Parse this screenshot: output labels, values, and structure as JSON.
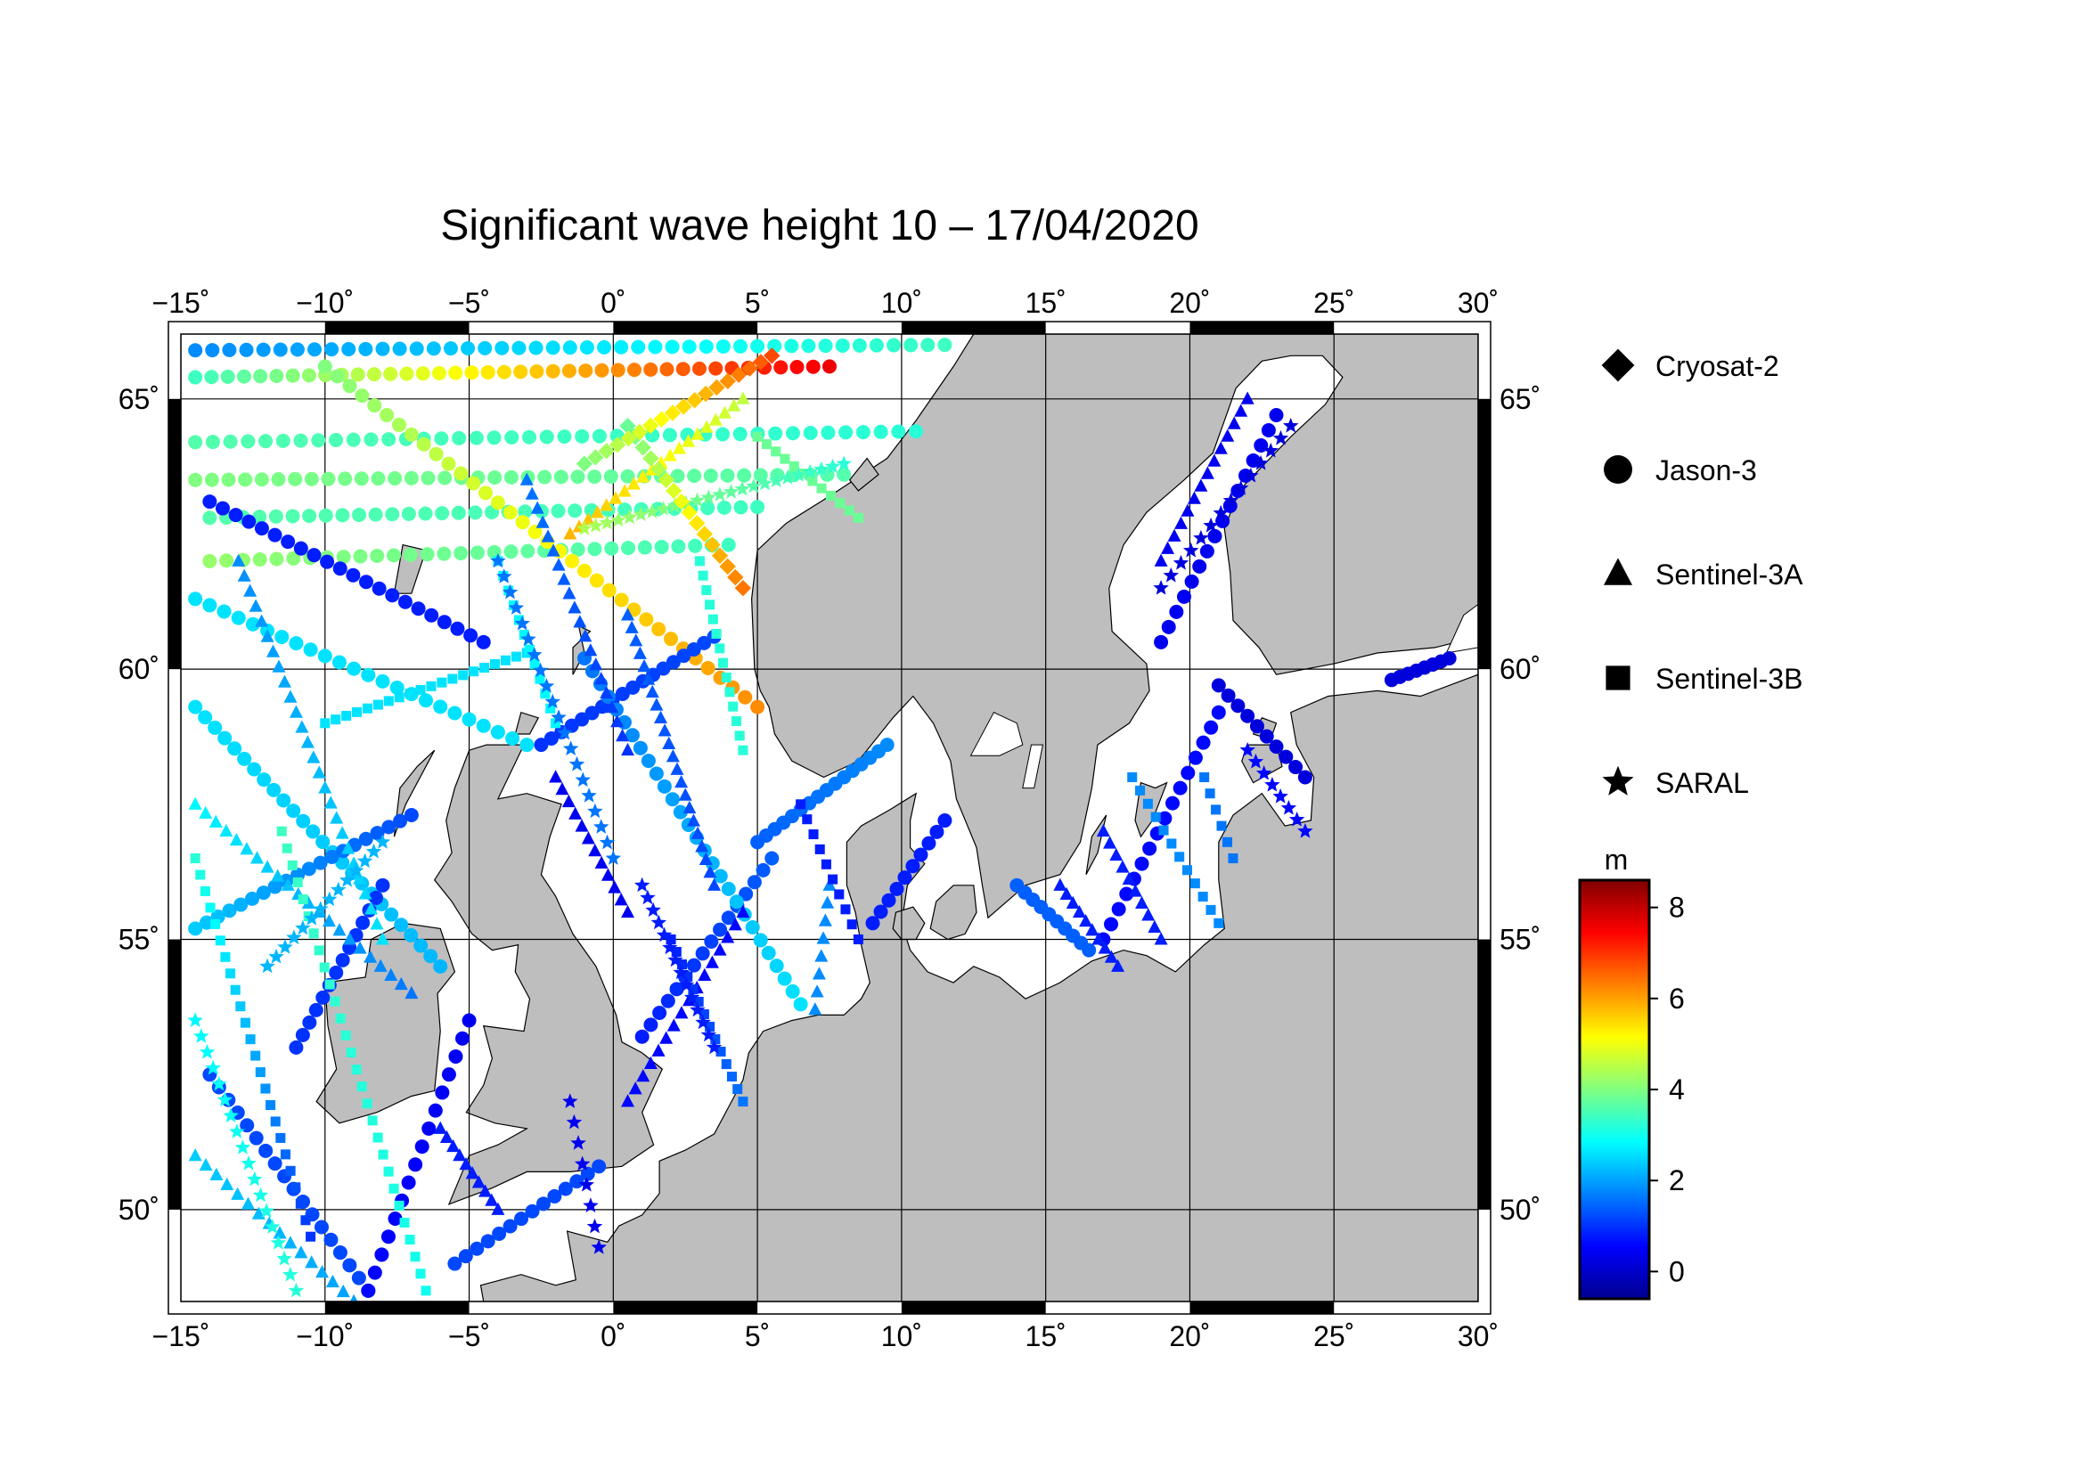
{
  "title": "Significant wave height 10 – 17/04/2020",
  "map": {
    "lon_range": [
      -15,
      30
    ],
    "lat_range": [
      48.3,
      66.2
    ],
    "lon_ticks": [
      -15,
      -10,
      -5,
      0,
      5,
      10,
      15,
      20,
      25,
      30
    ],
    "lon_tick_labels": [
      "−15˚",
      "−10˚",
      "−5˚",
      "0˚",
      "5˚",
      "10˚",
      "15˚",
      "20˚",
      "25˚",
      "30˚"
    ],
    "lat_ticks": [
      50,
      55,
      60,
      65
    ],
    "lat_tick_labels": [
      "50˚",
      "55˚",
      "60˚",
      "65˚"
    ],
    "grid": true,
    "land_color": "#bebebe",
    "sea_color": "#ffffff"
  },
  "legend": {
    "placement": "right",
    "items": [
      {
        "label": "Cryosat-2",
        "symbol": "diamond"
      },
      {
        "label": "Jason-3",
        "symbol": "circle"
      },
      {
        "label": "Sentinel-3A",
        "symbol": "triangle"
      },
      {
        "label": "Sentinel-3B",
        "symbol": "square"
      },
      {
        "label": "SARAL",
        "symbol": "star"
      }
    ]
  },
  "colorbar": {
    "unit": "m",
    "range": [
      -0.6,
      8.6
    ],
    "ticks": [
      0,
      2,
      4,
      6,
      8
    ],
    "tick_labels": [
      "0",
      "2",
      "4",
      "6",
      "8"
    ],
    "colors": [
      "#00008f",
      "#0000ff",
      "#0080ff",
      "#00ffff",
      "#80ff80",
      "#ffff00",
      "#ff8000",
      "#ff0000",
      "#800000"
    ]
  },
  "chart_data": {
    "type": "scatter",
    "x_name": "longitude",
    "y_name": "latitude",
    "value_name": "significant wave height (m)",
    "tracks": [
      {
        "satellite": "Jason-3",
        "symbol": "circle",
        "start": [
          -14.5,
          65.9
        ],
        "end": [
          11.5,
          66.0
        ],
        "h_start": 1.8,
        "h_end": 3.4,
        "n": 45
      },
      {
        "satellite": "Jason-3",
        "symbol": "circle",
        "start": [
          -14.5,
          65.4
        ],
        "end": [
          7.5,
          65.6
        ],
        "h_start": 3.4,
        "h_end": 7.6,
        "n": 40
      },
      {
        "satellite": "Jason-3",
        "symbol": "circle",
        "start": [
          -14.5,
          64.2
        ],
        "end": [
          10.5,
          64.4
        ],
        "h_start": 3.6,
        "h_end": 3.2,
        "n": 42
      },
      {
        "satellite": "Jason-3",
        "symbol": "circle",
        "start": [
          -14.5,
          63.5
        ],
        "end": [
          8.0,
          63.6
        ],
        "h_start": 4.0,
        "h_end": 3.6,
        "n": 40
      },
      {
        "satellite": "Jason-3",
        "symbol": "circle",
        "start": [
          -14.0,
          62.8
        ],
        "end": [
          5.0,
          63.0
        ],
        "h_start": 3.6,
        "h_end": 3.4,
        "n": 34
      },
      {
        "satellite": "Jason-3",
        "symbol": "circle",
        "start": [
          -14.0,
          62.0
        ],
        "end": [
          4.0,
          62.3
        ],
        "h_start": 4.2,
        "h_end": 3.4,
        "n": 32
      },
      {
        "satellite": "Jason-3",
        "symbol": "circle",
        "start": [
          -10.0,
          65.6
        ],
        "end": [
          5.0,
          59.3
        ],
        "h_start": 4.0,
        "h_end": 6.2,
        "n": 36
      },
      {
        "satellite": "Jason-3",
        "symbol": "circle",
        "start": [
          -14.5,
          61.3
        ],
        "end": [
          -3.0,
          58.6
        ],
        "h_start": 2.6,
        "h_end": 2.6,
        "n": 24
      },
      {
        "satellite": "Jason-3",
        "symbol": "circle",
        "start": [
          -14.0,
          63.1
        ],
        "end": [
          -4.5,
          60.5
        ],
        "h_start": 0.8,
        "h_end": 0.8,
        "n": 22
      },
      {
        "satellite": "Jason-3",
        "symbol": "circle",
        "start": [
          -14.5,
          59.3
        ],
        "end": [
          -6.0,
          54.5
        ],
        "h_start": 2.6,
        "h_end": 2.2,
        "n": 26
      },
      {
        "satellite": "Jason-3",
        "symbol": "circle",
        "start": [
          -14.5,
          55.2
        ],
        "end": [
          -7.0,
          57.3
        ],
        "h_start": 2.4,
        "h_end": 1.2,
        "n": 20
      },
      {
        "satellite": "Jason-3",
        "symbol": "circle",
        "start": [
          -11.0,
          53.0
        ],
        "end": [
          -8.0,
          56.0
        ],
        "h_start": 1.0,
        "h_end": 1.0,
        "n": 14
      },
      {
        "satellite": "Jason-3",
        "symbol": "circle",
        "start": [
          -14.0,
          52.5
        ],
        "end": [
          -8.5,
          48.5
        ],
        "h_start": 1.2,
        "h_end": 1.2,
        "n": 18
      },
      {
        "satellite": "Jason-3",
        "symbol": "circle",
        "start": [
          -8.5,
          48.5
        ],
        "end": [
          -5.0,
          53.5
        ],
        "h_start": 0.6,
        "h_end": 0.4,
        "n": 16
      },
      {
        "satellite": "Jason-3",
        "symbol": "circle",
        "start": [
          -5.5,
          49.0
        ],
        "end": [
          -0.5,
          50.8
        ],
        "h_start": 1.2,
        "h_end": 1.2,
        "n": 14
      },
      {
        "satellite": "Jason-3",
        "symbol": "circle",
        "start": [
          1.0,
          53.2
        ],
        "end": [
          5.5,
          56.5
        ],
        "h_start": 0.8,
        "h_end": 1.4,
        "n": 16
      },
      {
        "satellite": "Jason-3",
        "symbol": "circle",
        "start": [
          -2.5,
          58.6
        ],
        "end": [
          3.5,
          60.6
        ],
        "h_start": 1.0,
        "h_end": 1.2,
        "n": 18
      },
      {
        "satellite": "Jason-3",
        "symbol": "circle",
        "start": [
          -1.0,
          60.2
        ],
        "end": [
          6.5,
          53.8
        ],
        "h_start": 1.6,
        "h_end": 2.6,
        "n": 28
      },
      {
        "satellite": "Jason-3",
        "symbol": "circle",
        "start": [
          5.0,
          56.8
        ],
        "end": [
          9.5,
          58.6
        ],
        "h_start": 1.4,
        "h_end": 1.8,
        "n": 16
      },
      {
        "satellite": "Jason-3",
        "symbol": "circle",
        "start": [
          9.0,
          55.3
        ],
        "end": [
          11.5,
          57.2
        ],
        "h_start": 0.8,
        "h_end": 0.8,
        "n": 10
      },
      {
        "satellite": "Jason-3",
        "symbol": "circle",
        "start": [
          14.0,
          56.0
        ],
        "end": [
          16.5,
          54.8
        ],
        "h_start": 1.4,
        "h_end": 1.4,
        "n": 10
      },
      {
        "satellite": "Jason-3",
        "symbol": "circle",
        "start": [
          17.0,
          55.0
        ],
        "end": [
          21.0,
          59.2
        ],
        "h_start": 0.6,
        "h_end": 0.6,
        "n": 16
      },
      {
        "satellite": "Jason-3",
        "symbol": "circle",
        "start": [
          19.0,
          60.5
        ],
        "end": [
          23.0,
          64.7
        ],
        "h_start": 0.4,
        "h_end": 0.4,
        "n": 16
      },
      {
        "satellite": "Jason-3",
        "symbol": "circle",
        "start": [
          21.0,
          59.7
        ],
        "end": [
          24.0,
          58.0
        ],
        "h_start": 0.2,
        "h_end": 0.2,
        "n": 10
      },
      {
        "satellite": "Jason-3",
        "symbol": "circle",
        "start": [
          27.0,
          59.8
        ],
        "end": [
          29.0,
          60.2
        ],
        "h_start": 0.2,
        "h_end": 0.2,
        "n": 8
      },
      {
        "satellite": "Sentinel-3A",
        "symbol": "triangle",
        "start": [
          -14.5,
          51.0
        ],
        "end": [
          -9.0,
          48.3
        ],
        "h_start": 2.4,
        "h_end": 2.0,
        "n": 16
      },
      {
        "satellite": "Sentinel-3A",
        "symbol": "triangle",
        "start": [
          -14.5,
          57.5
        ],
        "end": [
          -7.0,
          54.0
        ],
        "h_start": 2.8,
        "h_end": 1.6,
        "n": 22
      },
      {
        "satellite": "Sentinel-3A",
        "symbol": "triangle",
        "start": [
          -13.0,
          62.0
        ],
        "end": [
          -8.0,
          55.0
        ],
        "h_start": 1.8,
        "h_end": 2.6,
        "n": 26
      },
      {
        "satellite": "Sentinel-3A",
        "symbol": "triangle",
        "start": [
          -6.0,
          51.5
        ],
        "end": [
          -4.0,
          50.0
        ],
        "h_start": 0.8,
        "h_end": 0.8,
        "n": 10
      },
      {
        "satellite": "Sentinel-3A",
        "symbol": "triangle",
        "start": [
          -2.0,
          58.0
        ],
        "end": [
          0.5,
          55.5
        ],
        "h_start": 0.4,
        "h_end": 0.4,
        "n": 12
      },
      {
        "satellite": "Sentinel-3A",
        "symbol": "triangle",
        "start": [
          -3.0,
          63.5
        ],
        "end": [
          0.5,
          58.5
        ],
        "h_start": 1.6,
        "h_end": 1.0,
        "n": 20
      },
      {
        "satellite": "Sentinel-3A",
        "symbol": "triangle",
        "start": [
          0.5,
          61.0
        ],
        "end": [
          3.5,
          56.0
        ],
        "h_start": 1.4,
        "h_end": 1.2,
        "n": 22
      },
      {
        "satellite": "Sentinel-3A",
        "symbol": "triangle",
        "start": [
          0.5,
          52.0
        ],
        "end": [
          4.5,
          55.5
        ],
        "h_start": 0.6,
        "h_end": 0.6,
        "n": 16
      },
      {
        "satellite": "Sentinel-3A",
        "symbol": "triangle",
        "start": [
          7.0,
          53.7
        ],
        "end": [
          7.5,
          56.0
        ],
        "h_start": 1.8,
        "h_end": 1.8,
        "n": 8
      },
      {
        "satellite": "Sentinel-3A",
        "symbol": "triangle",
        "start": [
          15.5,
          56.0
        ],
        "end": [
          17.5,
          54.5
        ],
        "h_start": 0.8,
        "h_end": 0.8,
        "n": 10
      },
      {
        "satellite": "Sentinel-3A",
        "symbol": "triangle",
        "start": [
          17.0,
          57.0
        ],
        "end": [
          19.0,
          55.0
        ],
        "h_start": 0.8,
        "h_end": 0.8,
        "n": 10
      },
      {
        "satellite": "Sentinel-3A",
        "symbol": "triangle",
        "start": [
          19.0,
          62.0
        ],
        "end": [
          22.0,
          65.0
        ],
        "h_start": 0.4,
        "h_end": 0.4,
        "n": 14
      },
      {
        "satellite": "Sentinel-3A",
        "symbol": "triangle",
        "start": [
          -1.5,
          62.5
        ],
        "end": [
          4.5,
          65.0
        ],
        "h_start": 5.8,
        "h_end": 4.6,
        "n": 20
      },
      {
        "satellite": "Sentinel-3B",
        "symbol": "square",
        "start": [
          -14.5,
          56.5
        ],
        "end": [
          -10.5,
          49.5
        ],
        "h_start": 3.2,
        "h_end": 1.0,
        "n": 24
      },
      {
        "satellite": "Sentinel-3B",
        "symbol": "square",
        "start": [
          -11.5,
          57.0
        ],
        "end": [
          -6.5,
          48.5
        ],
        "h_start": 3.4,
        "h_end": 3.0,
        "n": 28
      },
      {
        "satellite": "Sentinel-3B",
        "symbol": "square",
        "start": [
          -10.0,
          59.0
        ],
        "end": [
          -3.0,
          60.3
        ],
        "h_start": 2.6,
        "h_end": 2.6,
        "n": 20
      },
      {
        "satellite": "Sentinel-3B",
        "symbol": "square",
        "start": [
          -4.0,
          62.0
        ],
        "end": [
          -2.0,
          59.0
        ],
        "h_start": 2.8,
        "h_end": 2.8,
        "n": 12
      },
      {
        "satellite": "Sentinel-3B",
        "symbol": "square",
        "start": [
          2.0,
          55.0
        ],
        "end": [
          4.5,
          52.0
        ],
        "h_start": 0.8,
        "h_end": 1.6,
        "n": 14
      },
      {
        "satellite": "Sentinel-3B",
        "symbol": "square",
        "start": [
          3.0,
          62.0
        ],
        "end": [
          4.5,
          58.5
        ],
        "h_start": 3.2,
        "h_end": 3.2,
        "n": 14
      },
      {
        "satellite": "Sentinel-3B",
        "symbol": "square",
        "start": [
          6.5,
          57.5
        ],
        "end": [
          8.5,
          55.0
        ],
        "h_start": 0.8,
        "h_end": 0.8,
        "n": 10
      },
      {
        "satellite": "Sentinel-3B",
        "symbol": "square",
        "start": [
          18.0,
          58.0
        ],
        "end": [
          21.0,
          55.3
        ],
        "h_start": 1.8,
        "h_end": 1.8,
        "n": 12
      },
      {
        "satellite": "Sentinel-3B",
        "symbol": "square",
        "start": [
          20.5,
          58.0
        ],
        "end": [
          21.5,
          56.5
        ],
        "h_start": 1.6,
        "h_end": 1.6,
        "n": 6
      },
      {
        "satellite": "Sentinel-3B",
        "symbol": "square",
        "start": [
          5.0,
          64.3
        ],
        "end": [
          8.5,
          62.8
        ],
        "h_start": 3.8,
        "h_end": 3.8,
        "n": 12
      },
      {
        "satellite": "SARAL",
        "symbol": "star",
        "start": [
          -14.5,
          53.5
        ],
        "end": [
          -11.0,
          48.5
        ],
        "h_start": 2.8,
        "h_end": 3.2,
        "n": 18
      },
      {
        "satellite": "SARAL",
        "symbol": "star",
        "start": [
          -12.0,
          54.5
        ],
        "end": [
          -8.0,
          56.8
        ],
        "h_start": 2.2,
        "h_end": 2.2,
        "n": 14
      },
      {
        "satellite": "SARAL",
        "symbol": "star",
        "start": [
          -4.0,
          62.0
        ],
        "end": [
          0.0,
          56.5
        ],
        "h_start": 1.6,
        "h_end": 1.6,
        "n": 20
      },
      {
        "satellite": "SARAL",
        "symbol": "star",
        "start": [
          1.0,
          56.0
        ],
        "end": [
          3.5,
          53.0
        ],
        "h_start": 0.8,
        "h_end": 0.8,
        "n": 14
      },
      {
        "satellite": "SARAL",
        "symbol": "star",
        "start": [
          -1.5,
          52.0
        ],
        "end": [
          -0.5,
          49.3
        ],
        "h_start": 0.4,
        "h_end": 0.4,
        "n": 8
      },
      {
        "satellite": "SARAL",
        "symbol": "star",
        "start": [
          19.0,
          61.5
        ],
        "end": [
          23.5,
          64.5
        ],
        "h_start": 0.2,
        "h_end": 0.2,
        "n": 14
      },
      {
        "satellite": "SARAL",
        "symbol": "star",
        "start": [
          22.0,
          58.5
        ],
        "end": [
          24.0,
          57.0
        ],
        "h_start": 0.6,
        "h_end": 0.6,
        "n": 8
      },
      {
        "satellite": "SARAL",
        "symbol": "star",
        "start": [
          -1.0,
          62.6
        ],
        "end": [
          8.0,
          63.8
        ],
        "h_start": 4.4,
        "h_end": 3.2,
        "n": 24
      },
      {
        "satellite": "Cryosat-2",
        "symbol": "diamond",
        "start": [
          0.5,
          64.5
        ],
        "end": [
          4.5,
          61.5
        ],
        "h_start": 3.8,
        "h_end": 6.4,
        "n": 16
      },
      {
        "satellite": "Cryosat-2",
        "symbol": "diamond",
        "start": [
          -1.0,
          63.8
        ],
        "end": [
          5.5,
          65.8
        ],
        "h_start": 4.0,
        "h_end": 6.8,
        "n": 18
      }
    ]
  }
}
